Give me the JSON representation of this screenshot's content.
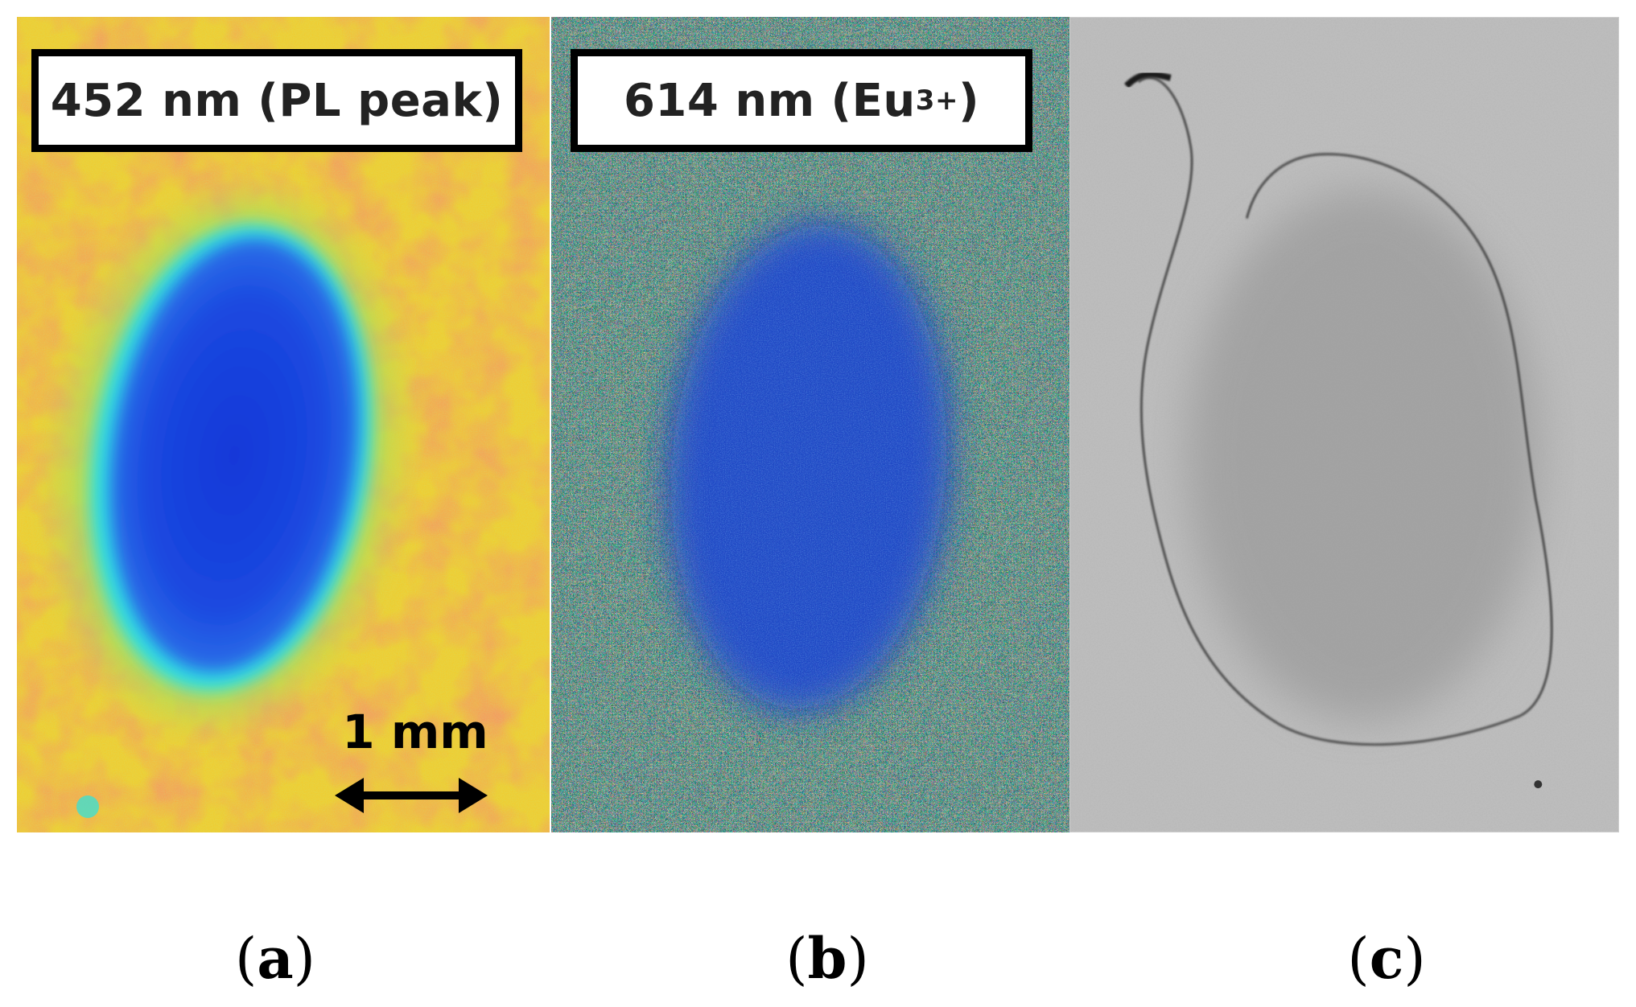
{
  "panels": {
    "a": {
      "label_main": "452 nm (PL peak)",
      "caption_letter": "a"
    },
    "b": {
      "label_prefix": "614 nm (Eu",
      "label_superscript": "3+",
      "label_suffix": ")",
      "caption_letter": "b"
    },
    "c": {
      "caption_letter": "c"
    }
  },
  "scale_bar": {
    "label": "1 mm"
  },
  "colors": {
    "map_background_warm": "#f2c42e",
    "map_background_hot": "#e8401e",
    "map_spot_core": "#1a3fd6",
    "map_spot_edge": "#33d6e8",
    "noise_background": "#d4a040",
    "grayscale_background": "#b9b9b9",
    "grayscale_spot": "#9e9e9e"
  }
}
